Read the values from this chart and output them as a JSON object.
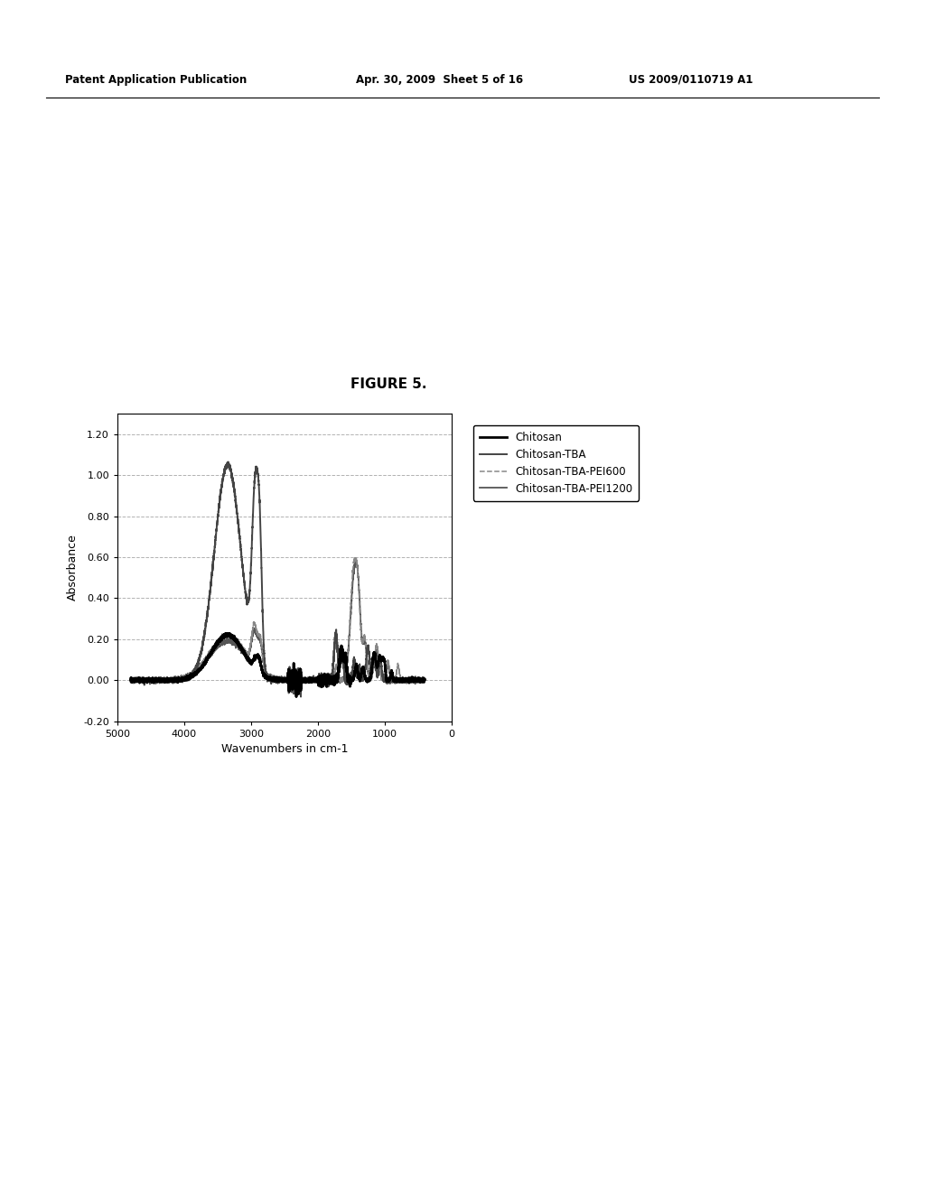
{
  "figure_title": "FIGURE 5.",
  "header_left": "Patent Application Publication",
  "header_center": "Apr. 30, 2009  Sheet 5 of 16",
  "header_right": "US 2009/0110719 A1",
  "xlabel": "Wavenumbers in cm-1",
  "ylabel": "Absorbance",
  "xlim": [
    5000,
    0
  ],
  "ylim": [
    -0.2,
    1.3
  ],
  "yticks": [
    -0.2,
    0.0,
    0.2,
    0.4,
    0.6,
    0.8,
    1.0,
    1.2
  ],
  "xticks": [
    5000,
    4000,
    3000,
    2000,
    1000,
    0
  ],
  "legend_labels": [
    "Chitosan",
    "Chitosan-TBA",
    "Chitosan-TBA-PEI600",
    "Chitosan-TBA-PEI1200"
  ],
  "background_color": "#ffffff",
  "grid_color": "#aaaaaa",
  "grid_style": "--"
}
